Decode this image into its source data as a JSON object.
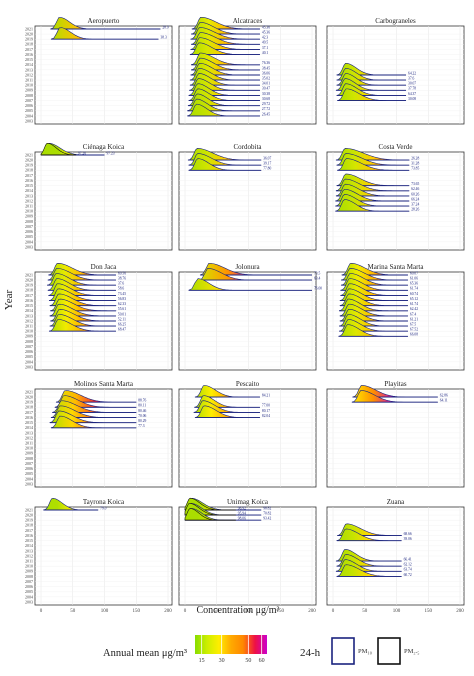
{
  "figure": {
    "y_axis_label": "Year",
    "x_axis_label": "Concentration μg/m³",
    "x_ticks": [
      0,
      50,
      100,
      150,
      200
    ],
    "years": [
      "2021",
      "2020",
      "2019",
      "2018",
      "2017",
      "2016",
      "2015",
      "2014",
      "2013",
      "2012",
      "2011",
      "2010",
      "2009",
      "2008",
      "2007",
      "2006",
      "2005",
      "2004",
      "2003"
    ]
  },
  "legend": {
    "annual_title": "Annual mean μg/m³",
    "annual_stops": [
      {
        "label": "15",
        "value": 15,
        "color": "#aadd00"
      },
      {
        "label": "30",
        "value": 30,
        "color": "#ffee00"
      },
      {
        "label": "50",
        "value": 50,
        "color": "#ff8800"
      },
      {
        "label": "60",
        "value": 60,
        "color": "#ee1144"
      }
    ],
    "ramp_colors": [
      "#88dd00",
      "#ccee00",
      "#ffee00",
      "#ffaa00",
      "#ff8800",
      "#ee1144",
      "#cc00cc"
    ],
    "box_title": "24-h",
    "pm10_label": "PM₁₀",
    "pm25_label": "PM₂.₅",
    "pm10_color": "#1a237e",
    "pm25_color": "#111111"
  },
  "chart_data": [
    {
      "type": "ridgeline",
      "title": "Aeropuerto",
      "xlim": [
        0,
        200
      ],
      "series": [
        {
          "year": "2021",
          "pollutant": "PM10",
          "mode": 29,
          "max": 188,
          "annual_mean": 36,
          "label": "28.9"
        },
        {
          "year": "2019",
          "pollutant": "PM10",
          "mode": 30,
          "max": 185,
          "annual_mean": 38,
          "label": "38.3"
        }
      ]
    },
    {
      "type": "ridgeline",
      "title": "Alcatraces",
      "xlim": [
        0,
        200
      ],
      "series": [
        {
          "year": "2021",
          "pollutant": "PM10",
          "mode": 25,
          "max": 118,
          "annual_mean": 44,
          "label": "45.36"
        },
        {
          "year": "2020",
          "pollutant": "PM10",
          "mode": 24,
          "max": 118,
          "annual_mean": 40,
          "label": "45.36"
        },
        {
          "year": "2019",
          "pollutant": "PM10",
          "mode": 23,
          "max": 118,
          "annual_mean": 42,
          "label": "42.3"
        },
        {
          "year": "2018",
          "pollutant": "PM10",
          "mode": 24,
          "max": 118,
          "annual_mean": 43,
          "label": "49.5"
        },
        {
          "year": "2017",
          "pollutant": "PM10",
          "mode": 23,
          "max": 118,
          "annual_mean": 40,
          "label": "37.1"
        },
        {
          "year": "2016",
          "pollutant": "PM10",
          "mode": 22,
          "max": 118,
          "annual_mean": 36,
          "label": "40.1"
        },
        {
          "year": "2014",
          "pollutant": "PM10",
          "mode": 24,
          "max": 118,
          "annual_mean": 40,
          "label": "76.36"
        },
        {
          "year": "2013",
          "pollutant": "PM10",
          "mode": 24,
          "max": 118,
          "annual_mean": 38,
          "label": "38.45"
        },
        {
          "year": "2012",
          "pollutant": "PM10",
          "mode": 23,
          "max": 118,
          "annual_mean": 36,
          "label": "36.06"
        },
        {
          "year": "2011",
          "pollutant": "PM10",
          "mode": 22,
          "max": 118,
          "annual_mean": 34,
          "label": "35.02"
        },
        {
          "year": "2010",
          "pollutant": "PM10",
          "mode": 22,
          "max": 118,
          "annual_mean": 33,
          "label": "34.01"
        },
        {
          "year": "2009",
          "pollutant": "PM10",
          "mode": 21,
          "max": 118,
          "annual_mean": 32,
          "label": "30.47"
        },
        {
          "year": "2008",
          "pollutant": "PM10",
          "mode": 20,
          "max": 118,
          "annual_mean": 30,
          "label": "30.38"
        },
        {
          "year": "2007",
          "pollutant": "PM10",
          "mode": 20,
          "max": 118,
          "annual_mean": 30,
          "label": "30.68"
        },
        {
          "year": "2006",
          "pollutant": "PM10",
          "mode": 19,
          "max": 118,
          "annual_mean": 28,
          "label": "29.72"
        },
        {
          "year": "2005",
          "pollutant": "PM10",
          "mode": 18,
          "max": 118,
          "annual_mean": 27,
          "label": "27.72"
        },
        {
          "year": "2004",
          "pollutant": "PM10",
          "mode": 18,
          "max": 118,
          "annual_mean": 26,
          "label": "26.45"
        }
      ]
    },
    {
      "type": "ridgeline",
      "title": "Carbograneles",
      "xlim": [
        0,
        200
      ],
      "series": [
        {
          "year": "2012",
          "pollutant": "PM10",
          "mode": 20,
          "max": 115,
          "annual_mean": 28,
          "label": "64.22"
        },
        {
          "year": "2011",
          "pollutant": "PM10",
          "mode": 20,
          "max": 115,
          "annual_mean": 29,
          "label": "37.6"
        },
        {
          "year": "2010",
          "pollutant": "PM10",
          "mode": 20,
          "max": 115,
          "annual_mean": 28,
          "label": "30.07"
        },
        {
          "year": "2009",
          "pollutant": "PM10",
          "mode": 19,
          "max": 115,
          "annual_mean": 27,
          "label": "37.78"
        },
        {
          "year": "2008",
          "pollutant": "PM10",
          "mode": 20,
          "max": 115,
          "annual_mean": 30,
          "label": "64.37"
        },
        {
          "year": "2007",
          "pollutant": "PM10",
          "mode": 21,
          "max": 115,
          "annual_mean": 34,
          "label": "30.08"
        }
      ]
    },
    {
      "type": "ridgeline",
      "title": "Ciénaga Koica",
      "xlim": [
        0,
        200
      ],
      "series": [
        {
          "year": "2021",
          "pollutant": "PM10",
          "mode": 12,
          "max": 100,
          "annual_mean": 22,
          "label": "97.23"
        },
        {
          "year": "2021",
          "pollutant": "PM2.5",
          "mode": 10,
          "max": 55,
          "annual_mean": 14,
          "label": "97.26"
        }
      ]
    },
    {
      "type": "ridgeline",
      "title": "Cordobita",
      "xlim": [
        0,
        200
      ],
      "series": [
        {
          "year": "2020",
          "pollutant": "PM10",
          "mode": 19,
          "max": 120,
          "annual_mean": 40,
          "label": "36.07"
        },
        {
          "year": "2019",
          "pollutant": "PM10",
          "mode": 20,
          "max": 120,
          "annual_mean": 36,
          "label": "39.17"
        },
        {
          "year": "2018",
          "pollutant": "PM10",
          "mode": 20,
          "max": 120,
          "annual_mean": 30,
          "label": "77.80"
        }
      ]
    },
    {
      "type": "ridgeline",
      "title": "Costa Verde",
      "xlim": [
        0,
        200
      ],
      "series": [
        {
          "year": "2020",
          "pollutant": "PM10",
          "mode": 19,
          "max": 120,
          "annual_mean": 46,
          "label": "26.28"
        },
        {
          "year": "2019",
          "pollutant": "PM10",
          "mode": 20,
          "max": 120,
          "annual_mean": 42,
          "label": "31.28"
        },
        {
          "year": "2018",
          "pollutant": "PM10",
          "mode": 21,
          "max": 120,
          "annual_mean": 40,
          "label": "73.85"
        },
        {
          "year": "2015",
          "pollutant": "PM10",
          "mode": 20,
          "max": 120,
          "annual_mean": 38,
          "label": "73.65"
        },
        {
          "year": "2014",
          "pollutant": "PM10",
          "mode": 19,
          "max": 120,
          "annual_mean": 36,
          "label": "62.46"
        },
        {
          "year": "2013",
          "pollutant": "PM10",
          "mode": 19,
          "max": 120,
          "annual_mean": 34,
          "label": "60.26"
        },
        {
          "year": "2012",
          "pollutant": "PM10",
          "mode": 18,
          "max": 120,
          "annual_mean": 32,
          "label": "66.24"
        },
        {
          "year": "2011",
          "pollutant": "PM10",
          "mode": 18,
          "max": 120,
          "annual_mean": 30,
          "label": "37.24"
        },
        {
          "year": "2010",
          "pollutant": "PM10",
          "mode": 18,
          "max": 120,
          "annual_mean": 28,
          "label": "28.26"
        }
      ]
    },
    {
      "type": "ridgeline",
      "title": "Don Jaca",
      "xlim": [
        0,
        200
      ],
      "series": [
        {
          "year": "2021",
          "pollutant": "PM10",
          "mode": 26,
          "max": 118,
          "annual_mean": 44,
          "label": "69.56"
        },
        {
          "year": "2020",
          "pollutant": "PM10",
          "mode": 25,
          "max": 118,
          "annual_mean": 42,
          "label": "38.76"
        },
        {
          "year": "2019",
          "pollutant": "PM10",
          "mode": 24,
          "max": 118,
          "annual_mean": 38,
          "label": "37.6"
        },
        {
          "year": "2018",
          "pollutant": "PM10",
          "mode": 25,
          "max": 118,
          "annual_mean": 38,
          "label": "58.6"
        },
        {
          "year": "2017",
          "pollutant": "PM10",
          "mode": 26,
          "max": 118,
          "annual_mean": 40,
          "label": "73.45"
        },
        {
          "year": "2016",
          "pollutant": "PM10",
          "mode": 27,
          "max": 118,
          "annual_mean": 42,
          "label": "56.83"
        },
        {
          "year": "2015",
          "pollutant": "PM10",
          "mode": 28,
          "max": 118,
          "annual_mean": 44,
          "label": "62.33"
        },
        {
          "year": "2014",
          "pollutant": "PM10",
          "mode": 29,
          "max": 118,
          "annual_mean": 46,
          "label": "55.61"
        },
        {
          "year": "2013",
          "pollutant": "PM10",
          "mode": 28,
          "max": 118,
          "annual_mean": 44,
          "label": "50.01"
        },
        {
          "year": "2012",
          "pollutant": "PM10",
          "mode": 29,
          "max": 118,
          "annual_mean": 46,
          "label": "52.11"
        },
        {
          "year": "2011",
          "pollutant": "PM10",
          "mode": 28,
          "max": 118,
          "annual_mean": 44,
          "label": "66.25"
        },
        {
          "year": "2010",
          "pollutant": "PM10",
          "mode": 27,
          "max": 118,
          "annual_mean": 42,
          "label": "68.47"
        }
      ]
    },
    {
      "type": "ridgeline",
      "title": "Jolonura",
      "xlim": [
        0,
        200
      ],
      "series": [
        {
          "year": "2021",
          "pollutant": "PM10",
          "mode": 38,
          "max": 200,
          "annual_mean": 58,
          "label": "73.5"
        },
        {
          "year": "2020",
          "pollutant": "PM10",
          "mode": 36,
          "max": 200,
          "annual_mean": 52,
          "label": "63.4"
        },
        {
          "year": "2018",
          "pollutant": "PM10",
          "mode": 20,
          "max": 200,
          "annual_mean": 30,
          "label": "76.00"
        }
      ]
    },
    {
      "type": "ridgeline",
      "title": "Marina Santa Marta",
      "xlim": [
        0,
        200
      ],
      "series": [
        {
          "year": "2021",
          "pollutant": "PM10",
          "mode": 28,
          "max": 118,
          "annual_mean": 45,
          "label": "60.07"
        },
        {
          "year": "2020",
          "pollutant": "PM10",
          "mode": 27,
          "max": 118,
          "annual_mean": 44,
          "label": "61.06"
        },
        {
          "year": "2019",
          "pollutant": "PM10",
          "mode": 27,
          "max": 118,
          "annual_mean": 42,
          "label": "65.36"
        },
        {
          "year": "2018",
          "pollutant": "PM10",
          "mode": 26,
          "max": 118,
          "annual_mean": 40,
          "label": "61.74"
        },
        {
          "year": "2017",
          "pollutant": "PM10",
          "mode": 26,
          "max": 118,
          "annual_mean": 40,
          "label": "60.74"
        },
        {
          "year": "2016",
          "pollutant": "PM10",
          "mode": 25,
          "max": 118,
          "annual_mean": 38,
          "label": "65.12"
        },
        {
          "year": "2015",
          "pollutant": "PM10",
          "mode": 25,
          "max": 118,
          "annual_mean": 38,
          "label": "61.74"
        },
        {
          "year": "2014",
          "pollutant": "PM10",
          "mode": 24,
          "max": 118,
          "annual_mean": 36,
          "label": "62.42"
        },
        {
          "year": "2013",
          "pollutant": "PM10",
          "mode": 25,
          "max": 118,
          "annual_mean": 38,
          "label": "67.4"
        },
        {
          "year": "2012",
          "pollutant": "PM10",
          "mode": 25,
          "max": 118,
          "annual_mean": 38,
          "label": "61.21"
        },
        {
          "year": "2011",
          "pollutant": "PM10",
          "mode": 24,
          "max": 118,
          "annual_mean": 36,
          "label": "67.5"
        },
        {
          "year": "2010",
          "pollutant": "PM10",
          "mode": 24,
          "max": 118,
          "annual_mean": 36,
          "label": "67.52"
        },
        {
          "year": "2009",
          "pollutant": "PM10",
          "mode": 23,
          "max": 118,
          "annual_mean": 34,
          "label": "66.08"
        }
      ]
    },
    {
      "type": "ridgeline",
      "title": "Molinos Santa Marta",
      "xlim": [
        0,
        200
      ],
      "series": [
        {
          "year": "2019",
          "pollutant": "PM10",
          "mode": 38,
          "max": 150,
          "annual_mean": 58,
          "label": "88.76"
        },
        {
          "year": "2018",
          "pollutant": "PM10",
          "mode": 36,
          "max": 150,
          "annual_mean": 54,
          "label": "80.11"
        },
        {
          "year": "2017",
          "pollutant": "PM10",
          "mode": 32,
          "max": 150,
          "annual_mean": 52,
          "label": "80.46"
        },
        {
          "year": "2016",
          "pollutant": "PM10",
          "mode": 30,
          "max": 150,
          "annual_mean": 48,
          "label": "70.06"
        },
        {
          "year": "2015",
          "pollutant": "PM10",
          "mode": 28,
          "max": 150,
          "annual_mean": 44,
          "label": "80.29"
        },
        {
          "year": "2014",
          "pollutant": "PM10",
          "mode": 30,
          "max": 150,
          "annual_mean": 42,
          "label": "77.3"
        }
      ]
    },
    {
      "type": "ridgeline",
      "title": "Pescaito",
      "xlim": [
        0,
        200
      ],
      "series": [
        {
          "year": "2020",
          "pollutant": "PM10",
          "mode": 30,
          "max": 118,
          "annual_mean": 40,
          "label": "84.21"
        },
        {
          "year": "2018",
          "pollutant": "PM10",
          "mode": 29,
          "max": 118,
          "annual_mean": 38,
          "label": "77.00"
        },
        {
          "year": "2017",
          "pollutant": "PM10",
          "mode": 28,
          "max": 118,
          "annual_mean": 40,
          "label": "80.17"
        },
        {
          "year": "2016",
          "pollutant": "PM10",
          "mode": 30,
          "max": 118,
          "annual_mean": 42,
          "label": "82.04"
        }
      ]
    },
    {
      "type": "ridgeline",
      "title": "Playitas",
      "xlim": [
        0,
        200
      ],
      "series": [
        {
          "year": "2020",
          "pollutant": "PM10",
          "mode": 45,
          "max": 165,
          "annual_mean": 62,
          "label": "62.86"
        },
        {
          "year": "2019",
          "pollutant": "PM10",
          "mode": 44,
          "max": 165,
          "annual_mean": 60,
          "label": "64.11"
        }
      ]
    },
    {
      "type": "ridgeline",
      "title": "Tayrona Koica",
      "xlim": [
        0,
        200
      ],
      "series": [
        {
          "year": "2021",
          "pollutant": "PM10",
          "mode": 18,
          "max": 90,
          "annual_mean": 24,
          "label": "79.0"
        }
      ]
    },
    {
      "type": "ridgeline",
      "title": "Unimag Koica",
      "xlim": [
        0,
        200
      ],
      "series": [
        {
          "year": "2021",
          "pollutant": "PM10",
          "mode": 10,
          "max": 120,
          "annual_mean": 20,
          "label": "98.82"
        },
        {
          "year": "2021",
          "pollutant": "PM2.5",
          "mode": 8,
          "max": 80,
          "annual_mean": 14,
          "label": "96.92"
        },
        {
          "year": "2020",
          "pollutant": "PM10",
          "mode": 9,
          "max": 120,
          "annual_mean": 18,
          "label": "70.82"
        },
        {
          "year": "2020",
          "pollutant": "PM2.5",
          "mode": 7,
          "max": 80,
          "annual_mean": 13,
          "label": "95.94"
        },
        {
          "year": "2019",
          "pollutant": "PM10",
          "mode": 10,
          "max": 120,
          "annual_mean": 18,
          "label": "93.42"
        },
        {
          "year": "2019",
          "pollutant": "PM2.5",
          "mode": 8,
          "max": 80,
          "annual_mean": 12,
          "label": "98.06"
        }
      ]
    },
    {
      "type": "ridgeline",
      "title": "Zuana",
      "xlim": [
        0,
        200
      ],
      "series": [
        {
          "year": "2016",
          "pollutant": "PM10",
          "mode": 21,
          "max": 108,
          "annual_mean": 38,
          "label": "68.66"
        },
        {
          "year": "2015",
          "pollutant": "PM10",
          "mode": 20,
          "max": 108,
          "annual_mean": 34,
          "label": "39.06"
        },
        {
          "year": "2011",
          "pollutant": "PM10",
          "mode": 19,
          "max": 108,
          "annual_mean": 28,
          "label": "66.41"
        },
        {
          "year": "2010",
          "pollutant": "PM10",
          "mode": 20,
          "max": 108,
          "annual_mean": 32,
          "label": "62.12"
        },
        {
          "year": "2009",
          "pollutant": "PM10",
          "mode": 19,
          "max": 108,
          "annual_mean": 30,
          "label": "63.74"
        },
        {
          "year": "2008",
          "pollutant": "PM10",
          "mode": 20,
          "max": 108,
          "annual_mean": 36,
          "label": "60.72"
        }
      ]
    }
  ]
}
